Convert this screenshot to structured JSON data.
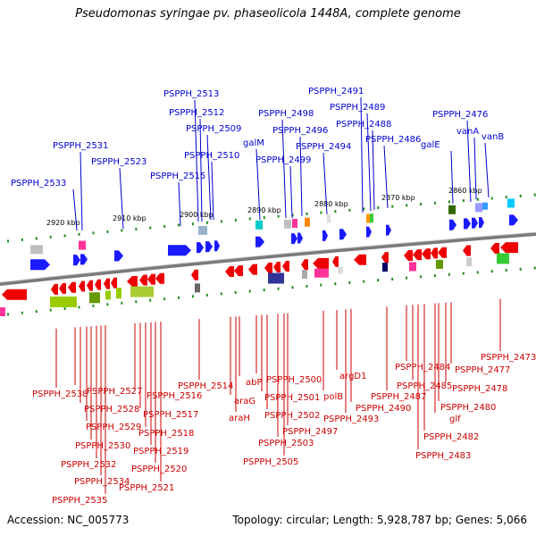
{
  "title": "Pseudomonas syringae pv. phaseolicola 1448A, complete genome",
  "accession": "Accession: NC_005773",
  "summary": "Topology: circular; Length: 5,928,787 bp; Genes: 5,066",
  "colors": {
    "forward": "#0000cc",
    "reverse": "#cc0000",
    "backbone": "#808080",
    "tick": "#228b22"
  },
  "ticks": [
    "2920 kbp",
    "2910 kbp",
    "2900 kbp",
    "2890 kbp",
    "2880 kbp",
    "2870 kbp",
    "2860 kbp"
  ],
  "top_labels": [
    "PSPPH_2533",
    "PSPPH_2531",
    "PSPPH_2523",
    "PSPPH_2515",
    "PSPPH_2513",
    "PSPPH_2512",
    "PSPPH_2509",
    "PSPPH_2510",
    "galM",
    "PSPPH_2499",
    "PSPPH_2498",
    "PSPPH_2496",
    "PSPPH_2494",
    "PSPPH_2491",
    "PSPPH_2489",
    "PSPPH_2488",
    "PSPPH_2486",
    "galE",
    "PSPPH_2476",
    "vanA",
    "vanB"
  ],
  "bottom_labels": [
    "PSPPH_2538",
    "PSPPH_2527",
    "PSPPH_2528",
    "PSPPH_2529",
    "PSPPH_2530",
    "PSPPH_2532",
    "PSPPH_2534",
    "PSPPH_2535",
    "PSPPH_2516",
    "PSPPH_2517",
    "PSPPH_2518",
    "PSPPH_2519",
    "PSPPH_2520",
    "PSPPH_2521",
    "PSPPH_2514",
    "araG",
    "araH",
    "abP",
    "PSPPH_2500",
    "PSPPH_2501",
    "PSPPH_2502",
    "PSPPH_2503",
    "PSPPH_2505",
    "PSPPH_2497",
    "polB",
    "argD1",
    "PSPPH_2493",
    "PSPPH_2490",
    "PSPPH_2487",
    "PSPPH_2484",
    "PSPPH_2485",
    "PSPPH_2483",
    "PSPPH_2482",
    "glf",
    "PSPPH_2480",
    "PSPPH_2478",
    "PSPPH_2477",
    "PSPPH_2473"
  ]
}
